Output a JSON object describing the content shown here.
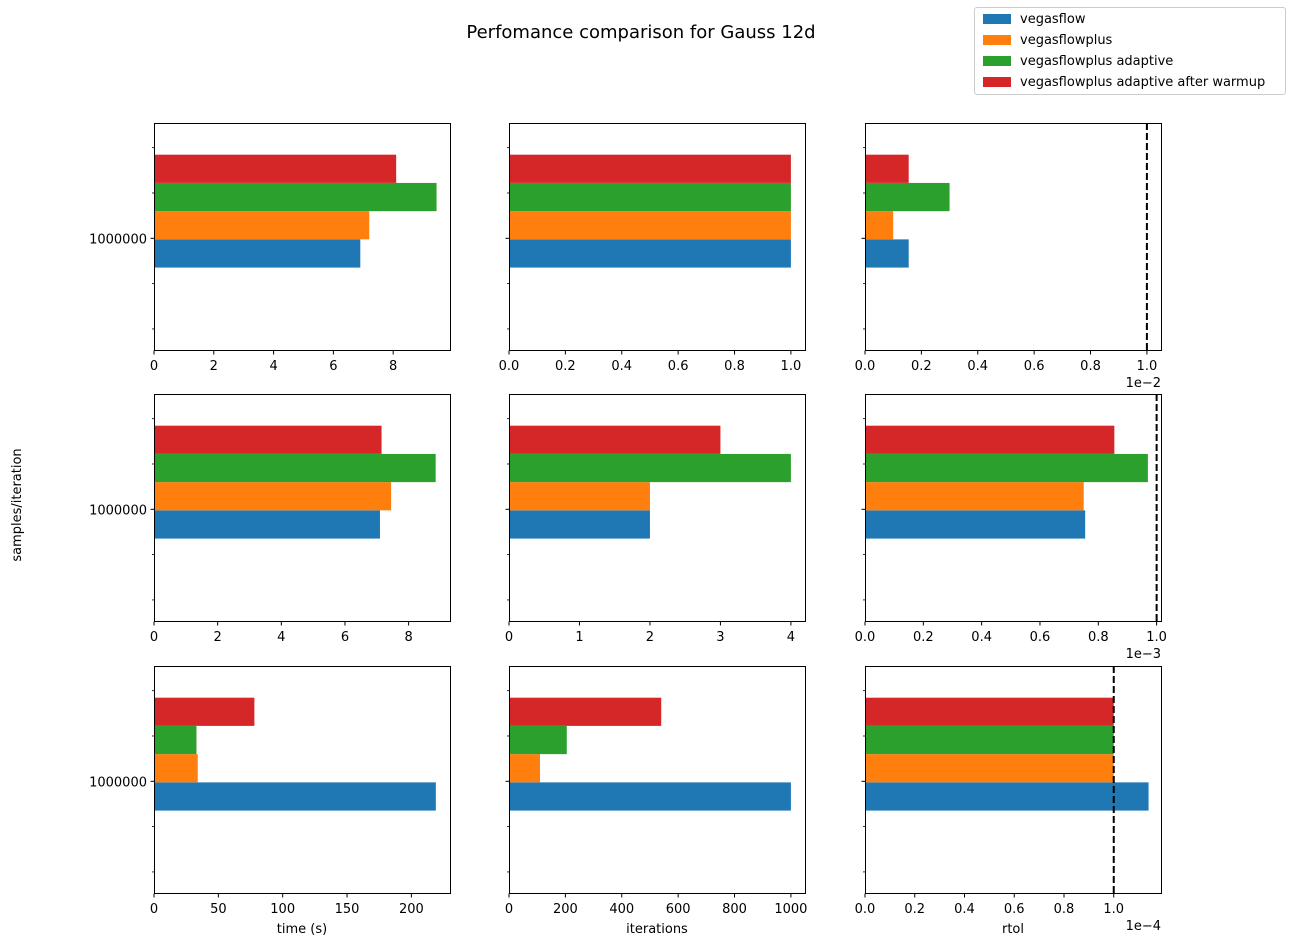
{
  "figure": {
    "title": "Perfomance comparison for Gauss 12d",
    "row_label": "samples/iteration"
  },
  "legend": {
    "items": [
      {
        "label": "vegasflow",
        "color": "#1f77b4"
      },
      {
        "label": "vegasflowplus",
        "color": "#ff7f0e"
      },
      {
        "label": "vegasflowplus adaptive",
        "color": "#2ca02c"
      },
      {
        "label": "vegasflowplus adaptive after warmup",
        "color": "#d62728"
      }
    ]
  },
  "chart_data": [
    {
      "type": "bar",
      "orientation": "horizontal",
      "category": "1000000",
      "xlabel": "",
      "xlim": [
        0,
        9.9
      ],
      "xticks": [
        0,
        2,
        4,
        6,
        8
      ],
      "xtick_labels": [
        "0",
        "2",
        "4",
        "6",
        "8"
      ],
      "values": [
        6.9,
        7.2,
        9.45,
        8.1
      ]
    },
    {
      "type": "bar",
      "orientation": "horizontal",
      "category": "1000000",
      "xlabel": "",
      "xlim": [
        0,
        1.05
      ],
      "xticks": [
        0,
        0.2,
        0.4,
        0.6,
        0.8,
        1.0
      ],
      "xtick_labels": [
        "0.0",
        "0.2",
        "0.4",
        "0.6",
        "0.8",
        "1.0"
      ],
      "values": [
        1,
        1,
        1,
        1
      ]
    },
    {
      "type": "bar",
      "orientation": "horizontal",
      "category": "1000000",
      "xlabel": "",
      "xlim": [
        0,
        1.05
      ],
      "xticks": [
        0,
        0.2,
        0.4,
        0.6,
        0.8,
        1.0
      ],
      "xtick_labels": [
        "0.0",
        "0.2",
        "0.4",
        "0.6",
        "0.8",
        "1.0"
      ],
      "offset_text": "1e−2",
      "threshold": 1.0,
      "values": [
        0.155,
        0.1,
        0.3,
        0.155
      ]
    },
    {
      "type": "bar",
      "orientation": "horizontal",
      "category": "1000000",
      "xlabel": "",
      "xlim": [
        0,
        9.3
      ],
      "xticks": [
        0,
        2,
        4,
        6,
        8
      ],
      "xtick_labels": [
        "0",
        "2",
        "4",
        "6",
        "8"
      ],
      "values": [
        7.1,
        7.45,
        8.85,
        7.15
      ]
    },
    {
      "type": "bar",
      "orientation": "horizontal",
      "category": "1000000",
      "xlabel": "",
      "xlim": [
        0,
        4.2
      ],
      "xticks": [
        0,
        1,
        2,
        3,
        4
      ],
      "xtick_labels": [
        "0",
        "1",
        "2",
        "3",
        "4"
      ],
      "values": [
        2,
        2,
        4,
        3
      ]
    },
    {
      "type": "bar",
      "orientation": "horizontal",
      "category": "1000000",
      "xlabel": "",
      "xlim": [
        0,
        1.015
      ],
      "xticks": [
        0,
        0.2,
        0.4,
        0.6,
        0.8,
        1.0
      ],
      "xtick_labels": [
        "0.0",
        "0.2",
        "0.4",
        "0.6",
        "0.8",
        "1.0"
      ],
      "offset_text": "1e−3",
      "threshold": 1.0,
      "values": [
        0.755,
        0.75,
        0.97,
        0.855
      ]
    },
    {
      "type": "bar",
      "orientation": "horizontal",
      "category": "1000000",
      "xlabel": "time (s)",
      "xlim": [
        0,
        230
      ],
      "xticks": [
        0,
        50,
        100,
        150,
        200
      ],
      "xtick_labels": [
        "0",
        "50",
        "100",
        "150",
        "200"
      ],
      "values": [
        219,
        34,
        33,
        78
      ]
    },
    {
      "type": "bar",
      "orientation": "horizontal",
      "category": "1000000",
      "xlabel": "iterations",
      "xlim": [
        0,
        1050
      ],
      "xticks": [
        0,
        200,
        400,
        600,
        800,
        1000
      ],
      "xtick_labels": [
        "0",
        "200",
        "400",
        "600",
        "800",
        "1000"
      ],
      "values": [
        1000,
        110,
        205,
        540
      ]
    },
    {
      "type": "bar",
      "orientation": "horizontal",
      "category": "1000000",
      "xlabel": "rtol",
      "xlim": [
        0,
        1.19
      ],
      "xticks": [
        0,
        0.2,
        0.4,
        0.6,
        0.8,
        1.0
      ],
      "xtick_labels": [
        "0.0",
        "0.2",
        "0.4",
        "0.6",
        "0.8",
        "1.0"
      ],
      "offset_text": "1e−4",
      "threshold": 1.0,
      "values": [
        1.14,
        1.0,
        1.0,
        1.0
      ]
    }
  ]
}
